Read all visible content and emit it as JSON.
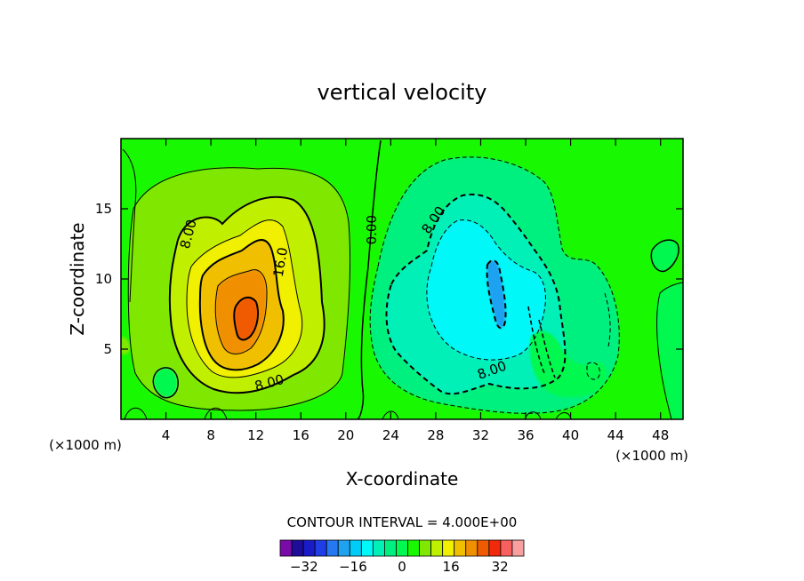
{
  "chart_data": {
    "type": "heatmap",
    "title": "vertical velocity",
    "xlabel": "X-coordinate",
    "ylabel": "Z-coordinate",
    "x_unit_left": "(×1000 m)",
    "x_unit_right": "(×1000 m)",
    "xlim": [
      0,
      50
    ],
    "ylim": [
      0,
      20
    ],
    "x_ticks": [
      4,
      8,
      12,
      16,
      20,
      24,
      28,
      32,
      36,
      40,
      44,
      48
    ],
    "y_ticks": [
      5,
      10,
      15
    ],
    "contour_interval_text": "CONTOUR INTERVAL = 4.000E+00",
    "contour_labels": [
      {
        "text": "8.00",
        "x": 6.0,
        "y": 13.2,
        "angle": -75
      },
      {
        "text": "16.0",
        "x": 14.2,
        "y": 11.2,
        "angle": -80
      },
      {
        "text": "8.00",
        "x": 13.2,
        "y": 2.6,
        "angle": -15
      },
      {
        "text": "0.00",
        "x": 22.3,
        "y": 13.5,
        "angle": -90
      },
      {
        "text": "8.00",
        "x": 27.8,
        "y": 14.2,
        "angle": -55
      },
      {
        "text": "8.00",
        "x": 33.0,
        "y": 3.5,
        "angle": -20
      }
    ],
    "field_features": [
      {
        "name": "updraft core",
        "x": 11.0,
        "z": 7.5,
        "peak": 26
      },
      {
        "name": "downdraft core",
        "x": 33.0,
        "z": 9.0,
        "peak": -18
      }
    ],
    "colorbar": {
      "levels": [
        -36,
        -32,
        -28,
        -24,
        -20,
        -16,
        -12,
        -8,
        -4,
        0,
        4,
        8,
        12,
        16,
        20,
        24,
        28,
        32,
        36
      ],
      "tick_labels": [
        "-32",
        "-16",
        "0",
        "16",
        "32"
      ],
      "tick_values": [
        -32,
        -16,
        0,
        16,
        32
      ],
      "colors": [
        "#7a0ba8",
        "#1d0d9a",
        "#1a1cc8",
        "#1f3ee8",
        "#2678f0",
        "#1fa2f0",
        "#00ccf8",
        "#00f8f8",
        "#00f0b8",
        "#00f080",
        "#00f850",
        "#18f800",
        "#80e800",
        "#c0f000",
        "#f0f000",
        "#f0c000",
        "#f09000",
        "#f05a00",
        "#f02a0a",
        "#f86060",
        "#f8a0a0"
      ]
    }
  }
}
